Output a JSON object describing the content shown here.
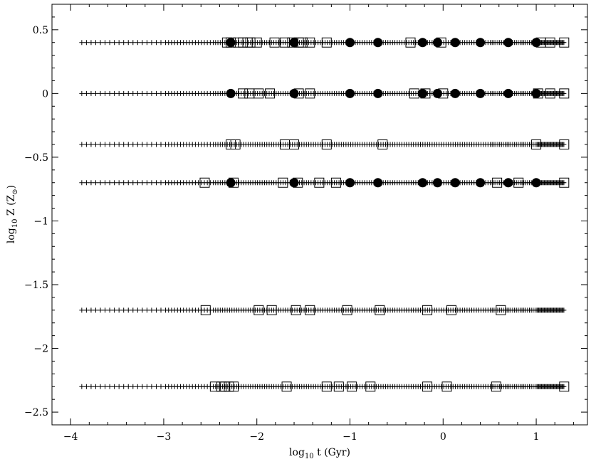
{
  "chart_data": {
    "type": "scatter",
    "title": "",
    "xlabel": {
      "main": "log",
      "sub": "10",
      "rest": " t  (Gyr)"
    },
    "ylabel": {
      "main": "log",
      "sub": "10",
      "rest": " Z  (Z",
      "sub2": "⊙",
      "close": ")"
    },
    "xlim": [
      -4.2,
      1.55
    ],
    "ylim": [
      -2.6,
      0.7
    ],
    "xticks": [
      -4,
      -3,
      -2,
      -1,
      0,
      1
    ],
    "xtick_labels": [
      "−4",
      "−3",
      "−2",
      "−1",
      "0",
      "1"
    ],
    "yticks": [
      0.5,
      0,
      -0.5,
      -1,
      -1.5,
      -2,
      -2.5
    ],
    "ytick_labels": [
      "0.5",
      "0",
      "−0.5",
      "−1",
      "−1.5",
      "−2",
      "−2.5"
    ],
    "grid": false,
    "legend": "none",
    "grid_points": {
      "marker": "plus",
      "x_start": -3.88,
      "x_end": 1.3,
      "rows_y": [
        0.4,
        0.0,
        -0.4,
        -0.7,
        -1.7,
        -2.3
      ]
    },
    "series": [
      {
        "marker": "open-square",
        "points": [
          {
            "y": 0.4,
            "x": [
              -2.32,
              -2.28,
              -2.2,
              -2.15,
              -2.1,
              -2.07,
              -2.0,
              -1.81,
              -1.7,
              -1.62,
              -1.55,
              -1.51,
              -1.43,
              -1.25,
              -0.35,
              -0.02,
              1.05,
              1.15,
              1.3
            ]
          },
          {
            "y": 0.0,
            "x": [
              -2.15,
              -2.08,
              -1.98,
              -1.86,
              -1.55,
              -1.43,
              -0.31,
              -0.19,
              0.0,
              1.02,
              1.15,
              1.3
            ]
          },
          {
            "y": -0.4,
            "x": [
              -2.28,
              -2.23,
              -1.7,
              -1.6,
              -1.25,
              -0.65,
              1.0,
              1.3
            ]
          },
          {
            "y": -0.7,
            "x": [
              -2.56,
              -2.25,
              -1.72,
              -1.56,
              -1.33,
              -1.15,
              0.58,
              0.81,
              1.3
            ]
          },
          {
            "y": -1.7,
            "x": [
              -2.55,
              -1.98,
              -1.84,
              -1.58,
              -1.43,
              -1.03,
              -0.68,
              -0.17,
              0.09,
              0.62
            ]
          },
          {
            "y": -2.3,
            "x": [
              -2.45,
              -2.38,
              -2.34,
              -2.3,
              -2.25,
              -1.68,
              -1.25,
              -1.12,
              -0.98,
              -0.78,
              -0.17,
              0.04,
              0.57,
              1.3
            ]
          }
        ]
      },
      {
        "marker": "filled-circle",
        "points": [
          {
            "y": 0.4,
            "x": [
              -2.28,
              -1.6,
              -1.0,
              -0.7,
              -0.22,
              -0.06,
              0.13,
              0.4,
              0.7,
              1.0
            ]
          },
          {
            "y": 0.0,
            "x": [
              -2.28,
              -1.6,
              -1.0,
              -0.7,
              -0.22,
              -0.06,
              0.13,
              0.4,
              0.7,
              1.0
            ]
          },
          {
            "y": -0.7,
            "x": [
              -2.28,
              -1.6,
              -1.0,
              -0.7,
              -0.22,
              -0.06,
              0.13,
              0.4,
              0.7,
              1.0
            ]
          }
        ]
      }
    ]
  }
}
